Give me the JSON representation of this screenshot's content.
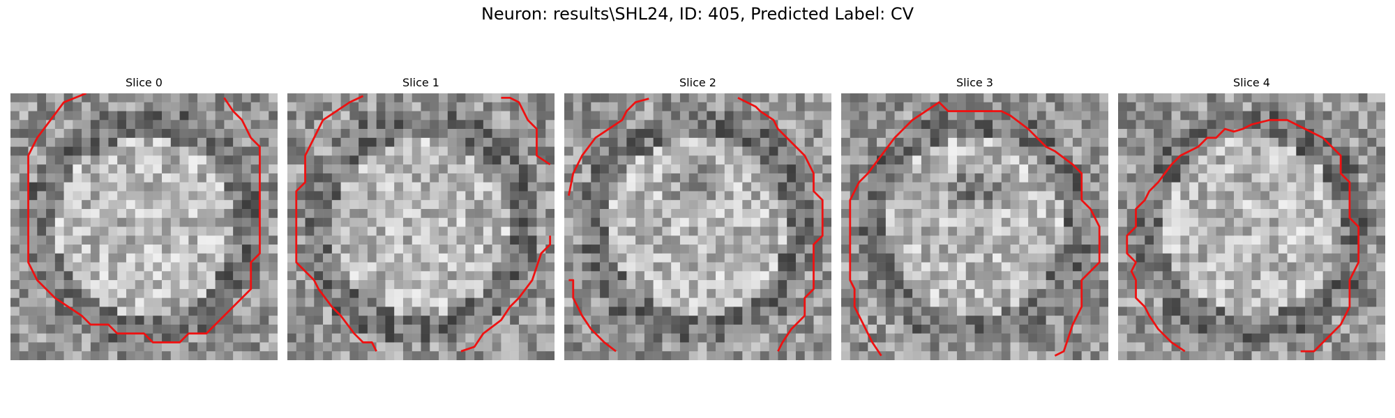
{
  "figure": {
    "suptitle": "Neuron: results\\SHL24, ID: 405, Predicted Label: CV",
    "contour_color": "#ee1111",
    "panels": [
      {
        "title": "Slice 0",
        "seed": 11,
        "dark_center": 0.0
      },
      {
        "title": "Slice 1",
        "seed": 23,
        "dark_center": 0.0
      },
      {
        "title": "Slice 2",
        "seed": 37,
        "dark_center": 0.55
      },
      {
        "title": "Slice 3",
        "seed": 53,
        "dark_center": 0.75
      },
      {
        "title": "Slice 4",
        "seed": 71,
        "dark_center": 0.0
      }
    ]
  }
}
